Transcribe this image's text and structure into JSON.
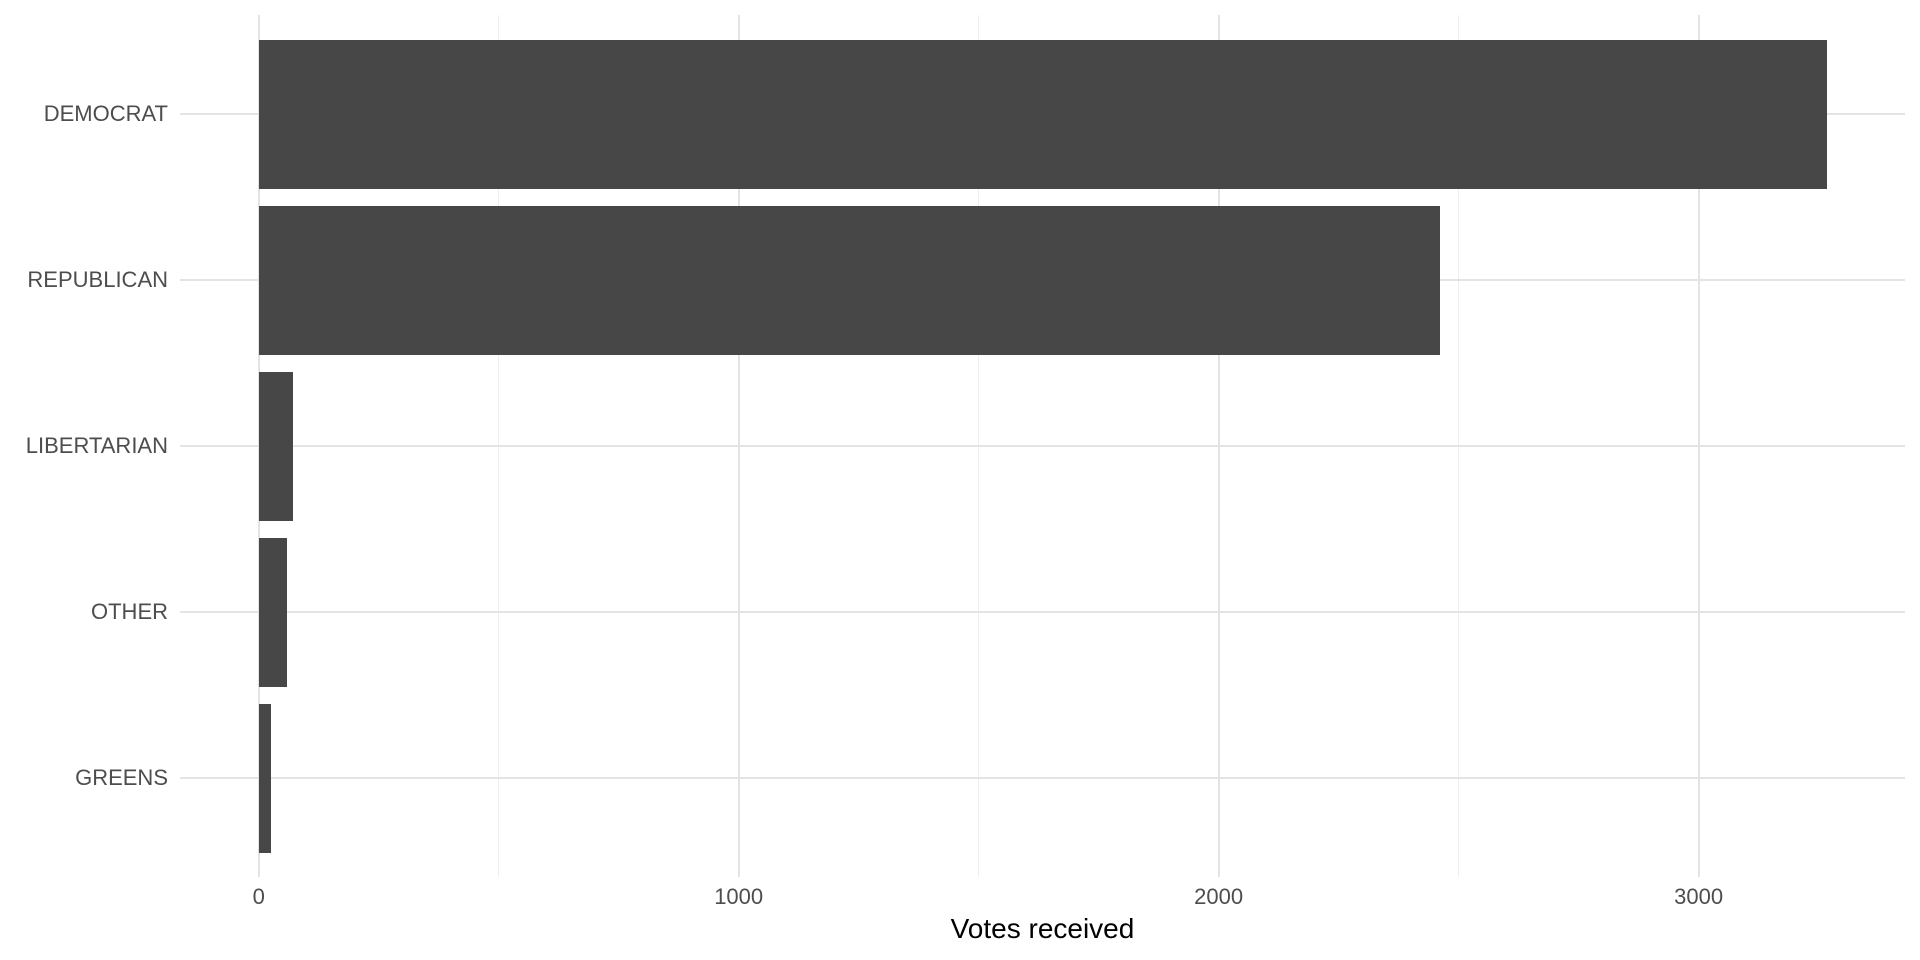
{
  "chart_data": {
    "type": "bar",
    "orientation": "horizontal",
    "title": "",
    "xlabel": "Votes received",
    "ylabel": "",
    "categories": [
      "DEMOCRAT",
      "REPUBLICAN",
      "LIBERTARIAN",
      "OTHER",
      "GREENS"
    ],
    "values": [
      3267,
      2462,
      71,
      59,
      26
    ],
    "x_ticks": [
      0,
      1000,
      2000,
      3000
    ],
    "x_tick_labels": [
      "0",
      "1000",
      "2000",
      "3000"
    ],
    "x_minor_ticks": [
      500,
      1500,
      2500
    ],
    "xlim": [
      -164,
      3430
    ],
    "grid": true,
    "legend": false,
    "bar_color": "#474747",
    "major_grid_color": "#e4e4e4",
    "minor_grid_color": "#eeeeee",
    "tick_label_color": "#4d4d4d",
    "axis_title_color": "#000000",
    "background_color": "#ffffff"
  }
}
